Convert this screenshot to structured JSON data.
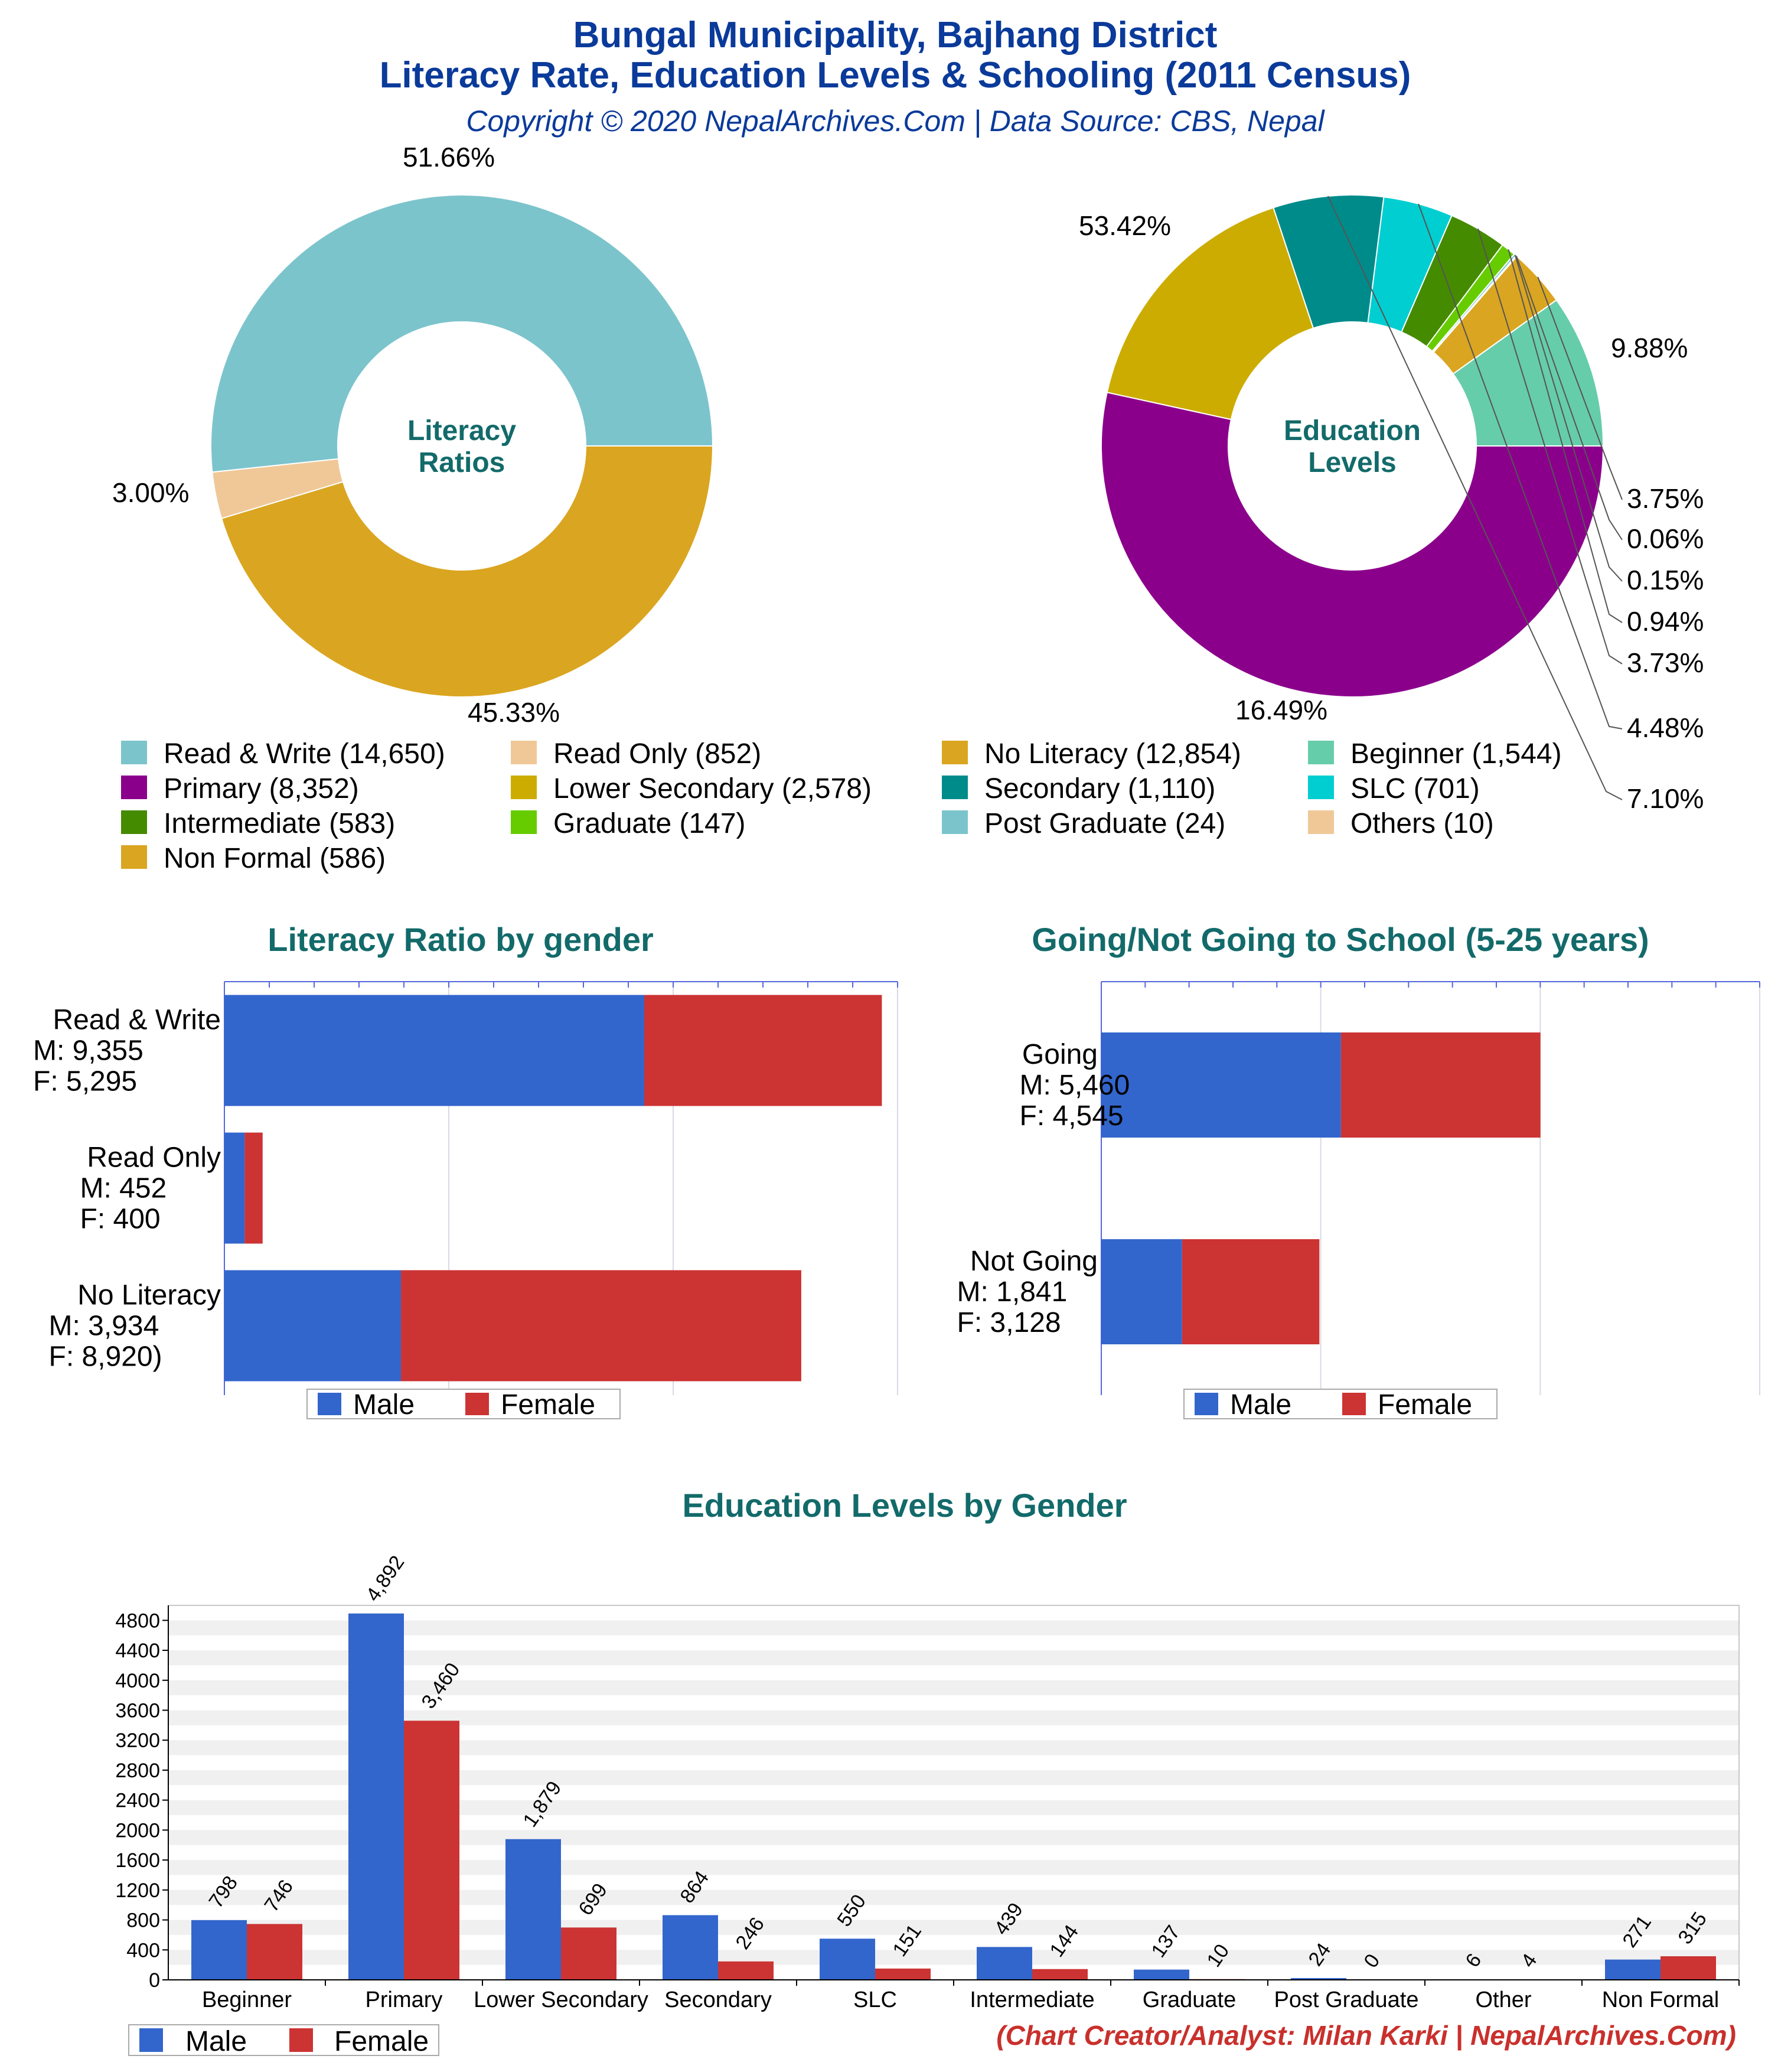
{
  "header": {
    "title_line1": "Bungal Municipality, Bajhang District",
    "title_line2": "Literacy Rate, Education Levels & Schooling (2011 Census)",
    "subtitle": "Copyright © 2020 NepalArchives.Com | Data Source: CBS, Nepal"
  },
  "footer": {
    "credit": "(Chart Creator/Analyst: Milan Karki | NepalArchives.Com)"
  },
  "chart_data": [
    {
      "type": "pie",
      "id": "literacy_ratios",
      "title": "Literacy Ratios",
      "slices": [
        {
          "label": "Read & Write",
          "value": 14650,
          "percent": "51.66%",
          "color": "#7cc4cc"
        },
        {
          "label": "Read Only",
          "value": 852,
          "percent": "3.00%",
          "color": "#f0c898"
        },
        {
          "label": "No Literacy",
          "value": 12854,
          "percent": "45.33%",
          "color": "#daa520"
        }
      ]
    },
    {
      "type": "pie",
      "id": "education_levels",
      "title": "Education Levels",
      "slices": [
        {
          "label": "Beginner",
          "value": 1544,
          "percent": "9.88%",
          "color": "#66cdaa"
        },
        {
          "label": "Non Formal",
          "value": 586,
          "percent": "3.75%",
          "color": "#daa520"
        },
        {
          "label": "Others",
          "value": 10,
          "percent": "0.06%",
          "color": "#f0c898"
        },
        {
          "label": "Post Graduate",
          "value": 24,
          "percent": "0.15%",
          "color": "#7cc4cc"
        },
        {
          "label": "Graduate",
          "value": 147,
          "percent": "0.94%",
          "color": "#66cc00"
        },
        {
          "label": "Intermediate",
          "value": 583,
          "percent": "3.73%",
          "color": "#458b00"
        },
        {
          "label": "SLC",
          "value": 701,
          "percent": "4.48%",
          "color": "#00ced1"
        },
        {
          "label": "Secondary",
          "value": 1110,
          "percent": "7.10%",
          "color": "#008b8b"
        },
        {
          "label": "Lower Secondary",
          "value": 2578,
          "percent": "16.49%",
          "color": "#ccac00"
        },
        {
          "label": "Primary",
          "value": 8352,
          "percent": "53.42%",
          "color": "#8b008b"
        }
      ]
    },
    {
      "type": "bar",
      "id": "literacy_by_gender",
      "title": "Literacy Ratio by gender",
      "orientation": "horizontal",
      "stacked": true,
      "xlim": [
        0,
        15000
      ],
      "categories": [
        {
          "lines": [
            "Read & Write",
            "M: 9,355",
            "F: 5,295"
          ]
        },
        {
          "lines": [
            "Read Only",
            "M: 452",
            "F: 400"
          ]
        },
        {
          "lines": [
            "No Literacy",
            "M: 3,934",
            "F: 8,920)"
          ]
        }
      ],
      "series": [
        {
          "name": "Male",
          "color": "#3366cc",
          "values": [
            9355,
            452,
            3934
          ]
        },
        {
          "name": "Female",
          "color": "#cc3333",
          "values": [
            5295,
            400,
            8920
          ]
        }
      ]
    },
    {
      "type": "bar",
      "id": "school_attendance",
      "title": "Going/Not Going to School (5-25 years)",
      "orientation": "horizontal",
      "stacked": true,
      "xlim": [
        0,
        15000
      ],
      "categories": [
        {
          "lines": [
            "Going",
            "M: 5,460",
            "F: 4,545"
          ]
        },
        {
          "lines": [
            "Not Going",
            "M: 1,841",
            "F: 3,128"
          ]
        }
      ],
      "series": [
        {
          "name": "Male",
          "color": "#3366cc",
          "values": [
            5460,
            1841
          ]
        },
        {
          "name": "Female",
          "color": "#cc3333",
          "values": [
            4545,
            3128
          ]
        }
      ]
    },
    {
      "type": "bar",
      "id": "education_by_gender",
      "title": "Education Levels by Gender",
      "orientation": "vertical",
      "ylim": [
        0,
        5000
      ],
      "yticks": [
        0,
        400,
        800,
        1200,
        1600,
        2000,
        2400,
        2800,
        3200,
        3600,
        4000,
        4400,
        4800
      ],
      "categories": [
        "Beginner",
        "Primary",
        "Lower Secondary",
        "Secondary",
        "SLC",
        "Intermediate",
        "Graduate",
        "Post Graduate",
        "Other",
        "Non Formal"
      ],
      "series": [
        {
          "name": "Male",
          "color": "#3366cc",
          "values": [
            798,
            4892,
            1879,
            864,
            550,
            439,
            137,
            24,
            6,
            271
          ],
          "labels": [
            "798",
            "4,892",
            "1,879",
            "864",
            "550",
            "439",
            "137",
            "24",
            "6",
            "271"
          ]
        },
        {
          "name": "Female",
          "color": "#cc3333",
          "values": [
            746,
            3460,
            699,
            246,
            151,
            144,
            10,
            0,
            4,
            315
          ],
          "labels": [
            "746",
            "3,460",
            "699",
            "246",
            "151",
            "144",
            "10",
            "0",
            "4",
            "315"
          ]
        }
      ]
    }
  ],
  "legends": {
    "pie": [
      "Read & Write (14,650)",
      "Read Only (852)",
      "No Literacy (12,854)",
      "Beginner (1,544)",
      "Primary (8,352)",
      "Lower Secondary (2,578)",
      "Secondary (1,110)",
      "SLC (701)",
      "Intermediate (583)",
      "Graduate (147)",
      "Post Graduate (24)",
      "Others (10)",
      "Non Formal (586)"
    ],
    "pie_colors": [
      "#7cc4cc",
      "#f0c898",
      "#daa520",
      "#66cdaa",
      "#8b008b",
      "#ccac00",
      "#008b8b",
      "#00ced1",
      "#458b00",
      "#66cc00",
      "#7cc4cc",
      "#f0c898",
      "#daa520"
    ],
    "gender": [
      "Male",
      "Female"
    ]
  },
  "center_labels": {
    "literacy": [
      "Literacy",
      "Ratios"
    ],
    "education": [
      "Education",
      "Levels"
    ]
  }
}
